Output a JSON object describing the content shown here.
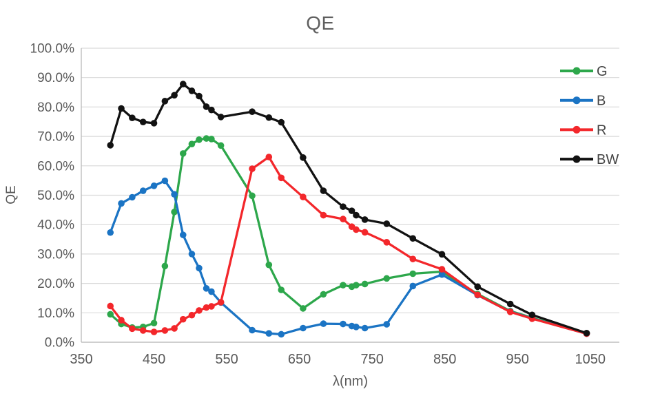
{
  "chart_data": {
    "type": "line",
    "title": "QE",
    "xlabel": "λ(nm)",
    "ylabel": "QE",
    "x": [
      390,
      405,
      420,
      435,
      450,
      465,
      478,
      490,
      502,
      512,
      522,
      529,
      542,
      585,
      608,
      625,
      655,
      683,
      710,
      722,
      728,
      740,
      770,
      806,
      846,
      895,
      940,
      970,
      1045
    ],
    "series": [
      {
        "name": "G",
        "color": "#2da74b",
        "values": [
          9.5,
          6.2,
          5.0,
          5.2,
          6.5,
          25.9,
          44.3,
          64.2,
          67.4,
          68.9,
          69.3,
          69.1,
          66.9,
          49.8,
          26.3,
          17.8,
          11.5,
          16.3,
          19.4,
          18.9,
          19.4,
          19.8,
          21.7,
          23.3,
          24.0,
          16.4,
          10.6,
          8.3,
          3.0
        ]
      },
      {
        "name": "B",
        "color": "#1b74c4",
        "values": [
          37.3,
          47.2,
          49.3,
          51.5,
          53.2,
          54.9,
          50.3,
          36.5,
          30.0,
          25.2,
          18.3,
          17.2,
          13.5,
          4.1,
          3.0,
          2.7,
          4.8,
          6.3,
          6.2,
          5.5,
          5.2,
          4.8,
          6.1,
          19.1,
          23.0,
          16.0,
          10.4,
          8.1,
          2.9
        ]
      },
      {
        "name": "R",
        "color": "#f3272b",
        "values": [
          12.3,
          7.5,
          4.6,
          4.0,
          3.5,
          4.0,
          4.7,
          7.8,
          9.2,
          10.8,
          11.8,
          12.2,
          13.6,
          59.0,
          63.0,
          55.9,
          49.4,
          43.2,
          41.9,
          39.3,
          38.3,
          37.4,
          34.0,
          28.3,
          24.8,
          16.1,
          10.3,
          8.0,
          2.9
        ]
      },
      {
        "name": "BW",
        "color": "#121212",
        "values": [
          67.0,
          79.5,
          76.3,
          74.9,
          74.5,
          82.0,
          84.0,
          87.8,
          85.5,
          83.7,
          80.1,
          79.0,
          76.6,
          78.4,
          76.4,
          74.8,
          62.8,
          51.5,
          46.1,
          44.7,
          43.2,
          41.7,
          40.3,
          35.3,
          29.9,
          18.9,
          13.0,
          9.3,
          3.1
        ]
      }
    ],
    "x_ticks": [
      350,
      450,
      550,
      650,
      750,
      850,
      950,
      1050
    ],
    "y_ticks_percent": [
      0,
      10,
      20,
      30,
      40,
      50,
      60,
      70,
      80,
      90,
      100
    ],
    "y_tick_labels": [
      "0.0%",
      "10.0%",
      "20.0%",
      "30.0%",
      "40.0%",
      "50.0%",
      "60.0%",
      "70.0%",
      "80.0%",
      "90.0%",
      "100.0%"
    ],
    "xlim": [
      350,
      1090
    ],
    "ylim": [
      0,
      100
    ],
    "grid": "horizontal",
    "legend_position": "right-inside",
    "legend_entries": [
      "G",
      "B",
      "R",
      "BW"
    ],
    "colors": {
      "grid": "#d9d9d9",
      "axis": "#bfbfbf",
      "tick_label": "#595959",
      "title": "#5f5f5f",
      "legend_label": "#444444",
      "background": "#ffffff"
    }
  }
}
